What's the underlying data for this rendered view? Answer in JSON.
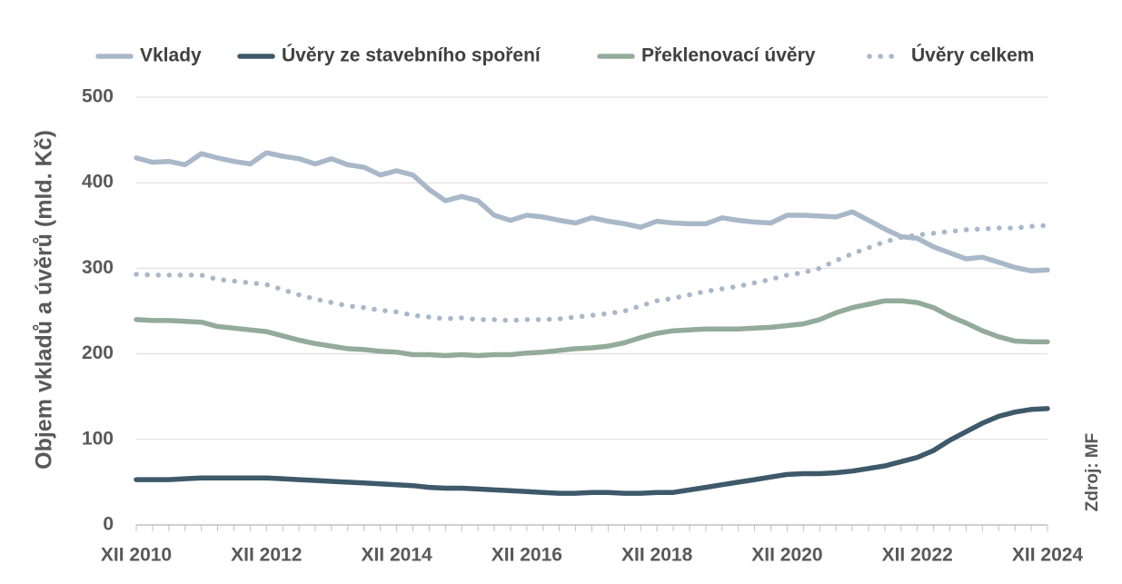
{
  "chart_data": {
    "type": "line",
    "ylabel": "Objem vkladů a úvěrů  (mld. Kč)",
    "source": "Zdroj: MF",
    "ylim": [
      0,
      500
    ],
    "yticks": [
      0,
      100,
      200,
      300,
      400,
      500
    ],
    "xticks": [
      "XII 2010",
      "XII 2012",
      "XII 2014",
      "XII 2016",
      "XII 2018",
      "XII 2020",
      "XII 2022",
      "XII 2024"
    ],
    "x_start": "XII 2010",
    "x_step": "quarter",
    "grid": "horizontal",
    "legend_position": "top",
    "series": [
      {
        "name": "Vklady",
        "color": "#a9b8c9",
        "style": "solid",
        "values": [
          429,
          424,
          425,
          421,
          434,
          429,
          425,
          422,
          435,
          431,
          428,
          422,
          428,
          421,
          418,
          409,
          414,
          409,
          392,
          379,
          384,
          379,
          362,
          356,
          362,
          360,
          356,
          353,
          359,
          355,
          352,
          348,
          355,
          353,
          352,
          352,
          359,
          356,
          354,
          353,
          362,
          362,
          361,
          360,
          366,
          356,
          346,
          337,
          335,
          325,
          318,
          311,
          313,
          307,
          301,
          297,
          298
        ]
      },
      {
        "name": "Úvěry ze stavebního spoření",
        "color": "#3e5969",
        "style": "solid",
        "values": [
          53,
          53,
          53,
          54,
          55,
          55,
          55,
          55,
          55,
          54,
          53,
          52,
          51,
          50,
          49,
          48,
          47,
          46,
          44,
          43,
          43,
          42,
          41,
          40,
          39,
          38,
          37,
          37,
          38,
          38,
          37,
          37,
          38,
          38,
          41,
          44,
          47,
          50,
          53,
          56,
          59,
          60,
          60,
          61,
          63,
          66,
          69,
          74,
          79,
          87,
          99,
          109,
          119,
          127,
          132,
          135,
          136
        ]
      },
      {
        "name": "Překlenovací úvěry",
        "color": "#93ab9a",
        "style": "solid",
        "values": [
          240,
          239,
          239,
          238,
          237,
          232,
          230,
          228,
          226,
          221,
          216,
          212,
          209,
          206,
          205,
          203,
          202,
          199,
          199,
          198,
          199,
          198,
          199,
          199,
          201,
          202,
          204,
          206,
          207,
          209,
          213,
          219,
          224,
          227,
          228,
          229,
          229,
          229,
          230,
          231,
          233,
          235,
          240,
          248,
          254,
          258,
          262,
          262,
          260,
          254,
          244,
          236,
          227,
          220,
          215,
          214,
          214
        ]
      },
      {
        "name": "Úvěry celkem",
        "color": "#a9b8c9",
        "style": "dotted",
        "values": [
          293,
          292,
          292,
          292,
          292,
          287,
          285,
          283,
          281,
          275,
          269,
          264,
          260,
          256,
          254,
          251,
          249,
          245,
          243,
          241,
          242,
          240,
          240,
          239,
          240,
          240,
          241,
          243,
          245,
          247,
          250,
          256,
          262,
          265,
          269,
          273,
          276,
          279,
          283,
          287,
          292,
          295,
          300,
          309,
          317,
          324,
          331,
          336,
          339,
          341,
          343,
          345,
          346,
          347,
          347,
          349,
          350
        ]
      }
    ]
  }
}
